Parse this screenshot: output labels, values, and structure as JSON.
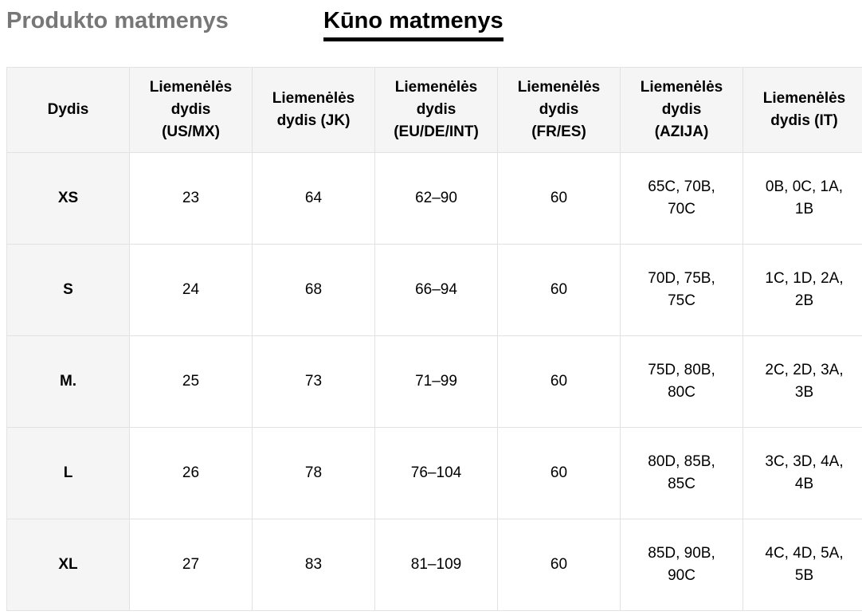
{
  "tabs": [
    "Produkto matmenys",
    "Kūno matmenys"
  ],
  "active_tab": 1,
  "table": {
    "header": [
      "Dydis",
      "Liemenėlės dydis (US/MX)",
      "Liemenėlės dydis (JK)",
      "Liemenėlės dydis (EU/DE/INT)",
      "Liemenėlės dydis (FR/ES)",
      "Liemenėlės dydis (AZIJA)",
      "Liemenėlės dydis (IT)"
    ],
    "rows": [
      [
        "XS",
        "23",
        "64",
        "62–90",
        "60",
        "65C, 70B, 70C",
        "0B, 0C, 1A, 1B"
      ],
      [
        "S",
        "24",
        "68",
        "66–94",
        "60",
        "70D, 75B, 75C",
        "1C, 1D, 2A, 2B"
      ],
      [
        "M.",
        "25",
        "73",
        "71–99",
        "60",
        "75D, 80B, 80C",
        "2C, 2D, 3A, 3B"
      ],
      [
        "L",
        "26",
        "78",
        "76–104",
        "60",
        "80D, 85B, 85C",
        "3C, 3D, 4A, 4B"
      ],
      [
        "XL",
        "27",
        "83",
        "81–109",
        "60",
        "85D, 90B, 90C",
        "4C, 4D, 5A, 5B"
      ]
    ]
  }
}
